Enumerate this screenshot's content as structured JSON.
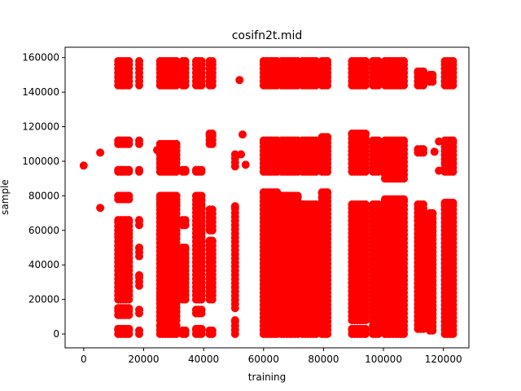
{
  "chart_data": {
    "type": "scatter",
    "title": "cosifn2t.mid",
    "xlabel": "training",
    "ylabel": "sample",
    "xlim": [
      -6200,
      128500
    ],
    "ylim": [
      -8000,
      166000
    ],
    "x_ticks": [
      0,
      20000,
      40000,
      60000,
      80000,
      100000,
      120000
    ],
    "y_ticks": [
      0,
      20000,
      40000,
      60000,
      80000,
      100000,
      120000,
      140000,
      160000
    ],
    "grid": false,
    "legend": "none",
    "marker_color": "#ff0000",
    "column_clusters": [
      {
        "x_start": 11500,
        "x_end": 15500,
        "x_step": 900,
        "bands": [
          [
            0,
            3000
          ],
          [
            11000,
            15000
          ],
          [
            20000,
            58000
          ],
          [
            60000,
            66000
          ],
          [
            78000,
            80000
          ],
          [
            94000,
            95000
          ],
          [
            110000,
            112000
          ],
          [
            144000,
            158000
          ]
        ]
      },
      {
        "x_start": 18500,
        "x_end": 18500,
        "x_step": 900,
        "bands": [
          [
            0,
            2000
          ],
          [
            12000,
            14000
          ],
          [
            28000,
            34000
          ],
          [
            45000,
            50000
          ],
          [
            63000,
            66000
          ],
          [
            94000,
            95000
          ],
          [
            110000,
            112000
          ],
          [
            144000,
            158000
          ]
        ]
      },
      {
        "x_start": 25500,
        "x_end": 31500,
        "x_step": 900,
        "bands": [
          [
            0,
            5000
          ],
          [
            8000,
            22000
          ],
          [
            24000,
            58000
          ],
          [
            60000,
            76000
          ],
          [
            78000,
            80000
          ],
          [
            94000,
            110000
          ],
          [
            144000,
            158000
          ]
        ]
      },
      {
        "x_start": 33000,
        "x_end": 34000,
        "x_step": 900,
        "bands": [
          [
            0,
            2000
          ],
          [
            20000,
            50000
          ],
          [
            63000,
            66000
          ],
          [
            94000,
            95000
          ],
          [
            144000,
            158000
          ]
        ]
      },
      {
        "x_start": 37500,
        "x_end": 39500,
        "x_step": 900,
        "bands": [
          [
            0,
            3000
          ],
          [
            12000,
            14000
          ],
          [
            20000,
            80000
          ],
          [
            94000,
            95000
          ],
          [
            144000,
            158000
          ]
        ]
      },
      {
        "x_start": 42000,
        "x_end": 43000,
        "x_step": 900,
        "bands": [
          [
            0,
            2000
          ],
          [
            20000,
            54000
          ],
          [
            60000,
            72000
          ],
          [
            110000,
            116000
          ],
          [
            144000,
            158000
          ]
        ]
      },
      {
        "x_start": 50500,
        "x_end": 50500,
        "x_step": 900,
        "bands": [
          [
            0,
            8000
          ],
          [
            15000,
            74000
          ],
          [
            97000,
            104000
          ]
        ]
      },
      {
        "x_start": 60000,
        "x_end": 64500,
        "x_step": 900,
        "bands": [
          [
            0,
            82000
          ],
          [
            94000,
            112000
          ],
          [
            144000,
            158000
          ]
        ]
      },
      {
        "x_start": 66000,
        "x_end": 71500,
        "x_step": 900,
        "bands": [
          [
            0,
            80000
          ],
          [
            94000,
            112000
          ],
          [
            144000,
            158000
          ]
        ]
      },
      {
        "x_start": 73000,
        "x_end": 77500,
        "x_step": 900,
        "bands": [
          [
            0,
            75000
          ],
          [
            94000,
            112000
          ],
          [
            144000,
            158000
          ]
        ]
      },
      {
        "x_start": 79500,
        "x_end": 82000,
        "x_step": 900,
        "bands": [
          [
            0,
            82000
          ],
          [
            94000,
            114000
          ],
          [
            144000,
            158000
          ]
        ]
      },
      {
        "x_start": 89500,
        "x_end": 94000,
        "x_step": 900,
        "bands": [
          [
            0,
            3000
          ],
          [
            8000,
            75000
          ],
          [
            94000,
            116000
          ],
          [
            144000,
            158000
          ]
        ]
      },
      {
        "x_start": 96500,
        "x_end": 99000,
        "x_step": 900,
        "bands": [
          [
            0,
            75000
          ],
          [
            94000,
            112000
          ],
          [
            144000,
            158000
          ]
        ]
      },
      {
        "x_start": 100500,
        "x_end": 107000,
        "x_step": 900,
        "bands": [
          [
            0,
            78000
          ],
          [
            90000,
            112000
          ],
          [
            144000,
            158000
          ]
        ]
      },
      {
        "x_start": 111500,
        "x_end": 113500,
        "x_step": 900,
        "bands": [
          [
            3000,
            75000
          ],
          [
            105000,
            107000
          ],
          [
            144000,
            152000
          ]
        ]
      },
      {
        "x_start": 115500,
        "x_end": 116500,
        "x_step": 900,
        "bands": [
          [
            2000,
            70000
          ],
          [
            146000,
            150000
          ]
        ]
      },
      {
        "x_start": 120500,
        "x_end": 123500,
        "x_step": 900,
        "bands": [
          [
            0,
            76000
          ],
          [
            94000,
            112000
          ],
          [
            144000,
            158000
          ]
        ]
      }
    ],
    "points": [
      [
        0,
        97500
      ],
      [
        5500,
        105000
      ],
      [
        5500,
        73000
      ],
      [
        24500,
        106500
      ],
      [
        52000,
        147000
      ],
      [
        52500,
        104000
      ],
      [
        53000,
        115500
      ],
      [
        54000,
        98000
      ],
      [
        117000,
        105500
      ],
      [
        118500,
        94500
      ],
      [
        118500,
        111500
      ]
    ]
  }
}
